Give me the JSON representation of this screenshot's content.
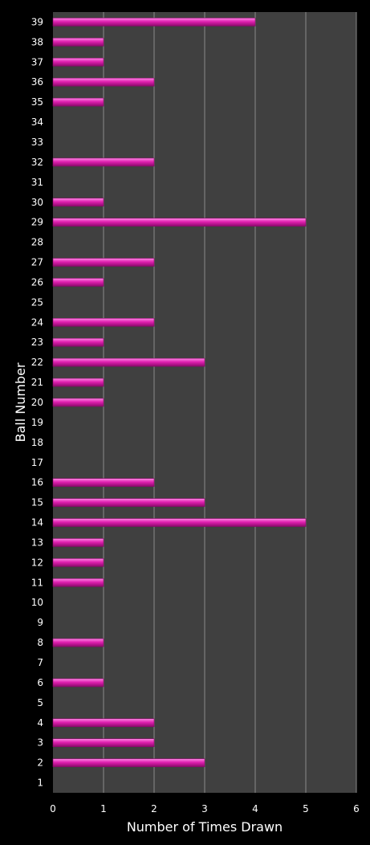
{
  "chart_data": {
    "type": "bar",
    "orientation": "horizontal",
    "title": "",
    "xlabel": "Number of Times Drawn",
    "ylabel": "Ball Number",
    "xlim": [
      0,
      6
    ],
    "xticks": [
      "0",
      "1",
      "2",
      "3",
      "4",
      "5",
      "6"
    ],
    "grid": true,
    "legend": "none",
    "categories": [
      "1",
      "2",
      "3",
      "4",
      "5",
      "6",
      "7",
      "8",
      "9",
      "10",
      "11",
      "12",
      "13",
      "14",
      "15",
      "16",
      "17",
      "18",
      "19",
      "20",
      "21",
      "22",
      "23",
      "24",
      "25",
      "26",
      "27",
      "28",
      "29",
      "30",
      "31",
      "32",
      "33",
      "34",
      "35",
      "36",
      "37",
      "38",
      "39"
    ],
    "values": [
      0,
      3,
      2,
      2,
      0,
      1,
      0,
      1,
      0,
      0,
      1,
      1,
      1,
      5,
      3,
      2,
      0,
      0,
      0,
      1,
      1,
      3,
      1,
      2,
      0,
      1,
      2,
      0,
      5,
      1,
      0,
      2,
      0,
      0,
      1,
      2,
      1,
      1,
      4
    ],
    "colors": {
      "background": "#000000",
      "plot_area": "#404040",
      "grid": "#8a8a8a",
      "bar": "#e020b0",
      "bar_highlight": "#ff8ae6",
      "bar_shadow": "#8a0a6a",
      "text": "#ffffff"
    }
  }
}
